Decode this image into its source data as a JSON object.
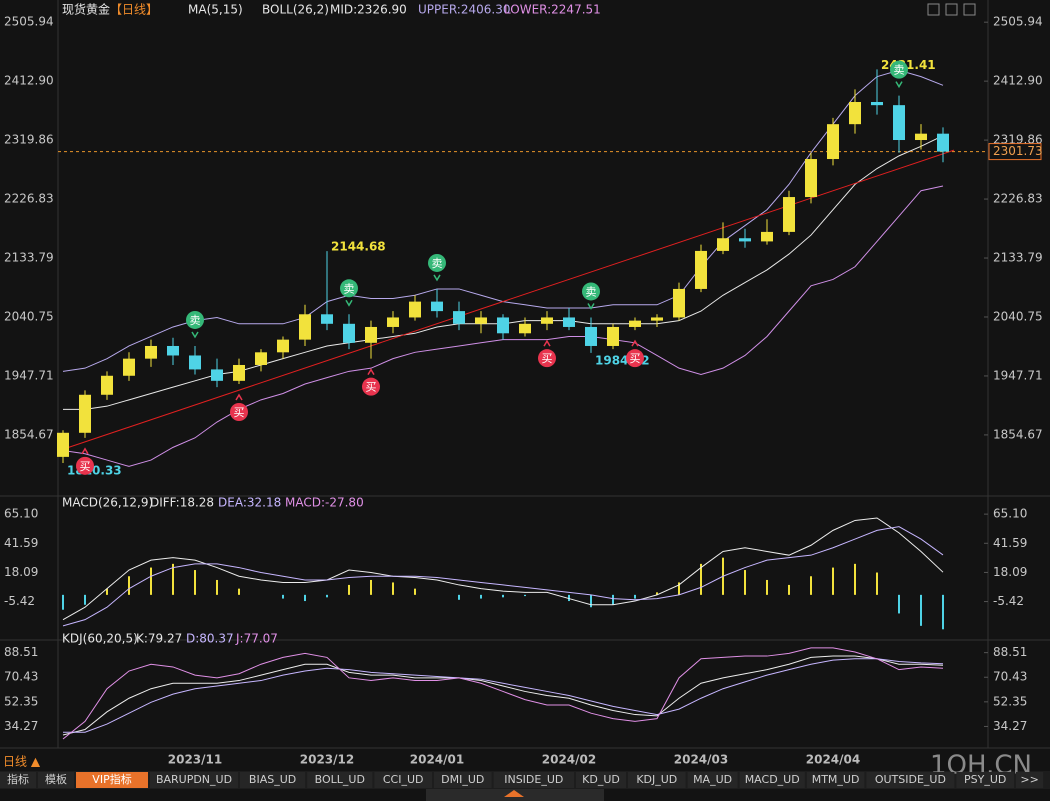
{
  "chart_data": [
    {
      "type": "candlestick",
      "labels": [
        "现货黄金",
        "【日线】",
        "MA(5,15)",
        "BOLL(26,2)",
        "MID:2326.90",
        "UPPER:2406.30",
        "LOWER:2247.51"
      ],
      "categories": [
        null,
        null,
        null,
        null,
        null,
        null,
        "2023/11",
        null,
        null,
        null,
        null,
        null,
        "2023/12",
        null,
        null,
        null,
        null,
        "2024/01",
        null,
        null,
        null,
        null,
        null,
        "2024/02",
        null,
        null,
        null,
        null,
        null,
        "2024/03",
        null,
        null,
        null,
        null,
        null,
        "2024/04",
        null,
        null,
        null,
        null,
        null
      ],
      "open": [
        1820,
        1858,
        1918,
        1948,
        1975,
        1995,
        1980,
        1958,
        1940,
        1965,
        1985,
        2005,
        2045,
        2030,
        2000,
        2025,
        2040,
        2065,
        2050,
        2030,
        2040,
        2015,
        2030,
        2040,
        2025,
        1995,
        2025,
        2035,
        2040,
        2085,
        2145,
        2165,
        2160,
        2175,
        2230,
        2290,
        2345,
        2380,
        2375,
        2320,
        2330
      ],
      "high": [
        1862,
        1925,
        1955,
        1985,
        2005,
        2008,
        1995,
        1975,
        1975,
        1990,
        2010,
        2060,
        2144.68,
        2045,
        2035,
        2050,
        2075,
        2085,
        2065,
        2050,
        2045,
        2040,
        2050,
        2055,
        2040,
        2030,
        2040,
        2045,
        2095,
        2155,
        2190,
        2180,
        2195,
        2240,
        2300,
        2355,
        2400,
        2431.41,
        2390,
        2345,
        2340
      ],
      "low": [
        1810.33,
        1850,
        1910,
        1940,
        1962,
        1965,
        1950,
        1930,
        1935,
        1955,
        1975,
        1995,
        2020,
        1990,
        1975,
        2015,
        2035,
        2040,
        2020,
        2015,
        2005,
        2010,
        2020,
        2020,
        1984.12,
        1990,
        2020,
        2025,
        2035,
        2080,
        2140,
        2150,
        2155,
        2170,
        2220,
        2280,
        2330,
        2360,
        2300,
        2305,
        2285
      ],
      "close": [
        1858,
        1918,
        1948,
        1975,
        1995,
        1980,
        1958,
        1940,
        1965,
        1985,
        2005,
        2045,
        2030,
        2000,
        2025,
        2040,
        2065,
        2050,
        2030,
        2040,
        2015,
        2030,
        2040,
        2025,
        1995,
        2025,
        2035,
        2040,
        2085,
        2145,
        2165,
        2160,
        2175,
        2230,
        2290,
        2345,
        2380,
        2375,
        2320,
        2330,
        2301.73
      ],
      "up_color": "#f2e23c",
      "down_color": "#4fd3e6",
      "overlays": [
        {
          "color": "#b7a9ec",
          "values": [
            1955,
            1960,
            1975,
            1995,
            2010,
            2025,
            2035,
            2040,
            2030,
            2030,
            2030,
            2040,
            2065,
            2075,
            2070,
            2070,
            2075,
            2085,
            2085,
            2075,
            2065,
            2060,
            2055,
            2055,
            2055,
            2060,
            2060,
            2060,
            2075,
            2120,
            2160,
            2185,
            2210,
            2250,
            2300,
            2345,
            2390,
            2420,
            2430,
            2420,
            2406.3
          ]
        },
        {
          "color": "#e8e8e8",
          "values": [
            1895,
            1895,
            1900,
            1910,
            1920,
            1930,
            1940,
            1950,
            1955,
            1965,
            1975,
            1985,
            1995,
            2000,
            2005,
            2010,
            2015,
            2025,
            2030,
            2030,
            2030,
            2035,
            2035,
            2035,
            2030,
            2030,
            2030,
            2030,
            2035,
            2050,
            2075,
            2095,
            2115,
            2140,
            2170,
            2210,
            2250,
            2275,
            2295,
            2310,
            2326.9
          ]
        },
        {
          "color": "#cf8fe6",
          "values": [
            1830,
            1825,
            1815,
            1805,
            1815,
            1835,
            1850,
            1875,
            1895,
            1910,
            1920,
            1935,
            1945,
            1955,
            1960,
            1975,
            1985,
            1990,
            1995,
            2000,
            2005,
            2005,
            2005,
            2010,
            2010,
            2005,
            2000,
            1980,
            1960,
            1950,
            1960,
            1980,
            2010,
            2050,
            2090,
            2100,
            2120,
            2160,
            2200,
            2240,
            2247.51
          ]
        }
      ],
      "trendline": {
        "color": "#e02020",
        "from": [
          0,
          1832
        ],
        "to": [
          40.5,
          2304
        ]
      },
      "last_price": 2301.73,
      "annotations": [
        {
          "index": 12,
          "value": 2144.68,
          "color": "#f2e23c"
        },
        {
          "index": 37,
          "value": 2431.41,
          "color": "#f2e23c"
        },
        {
          "index": 0,
          "value": 1810.33,
          "color": "#4fd3e6"
        },
        {
          "index": 24,
          "value": 1984.12,
          "color": "#4fd3e6"
        }
      ],
      "signals": [
        {
          "index": 1,
          "label": "买",
          "kind": "buy"
        },
        {
          "index": 8,
          "label": "买",
          "kind": "buy"
        },
        {
          "index": 14,
          "label": "买",
          "kind": "buy"
        },
        {
          "index": 22,
          "label": "买",
          "kind": "buy"
        },
        {
          "index": 26,
          "label": "买",
          "kind": "buy"
        },
        {
          "index": 6,
          "label": "卖",
          "kind": "sell"
        },
        {
          "index": 13,
          "label": "卖",
          "kind": "sell"
        },
        {
          "index": 17,
          "label": "卖",
          "kind": "sell"
        },
        {
          "index": 24,
          "label": "卖",
          "kind": "sell"
        },
        {
          "index": 38,
          "label": "卖",
          "kind": "sell"
        }
      ],
      "ylim": [
        1763,
        2522
      ],
      "yticks": [
        2505.94,
        {
          "value": 2412.9,
          "label": "2412.90"
        },
        2319.86,
        2226.83,
        2133.79,
        2040.75,
        1947.71,
        1854.67
      ]
    },
    {
      "type": "macd",
      "labels": [
        "MACD(26,12,9)",
        "DIFF:18.28",
        "DEA:32.18",
        "MACD:-27.80"
      ],
      "histogram": [
        -12,
        -8,
        5,
        15,
        22,
        25,
        20,
        12,
        5,
        0,
        -3,
        -5,
        -2,
        8,
        12,
        10,
        5,
        0,
        -4,
        -3,
        -2,
        -1,
        0,
        -5,
        -10,
        -8,
        -3,
        2,
        10,
        25,
        30,
        20,
        12,
        8,
        15,
        22,
        25,
        18,
        -15,
        -25,
        -27.8
      ],
      "up_color": "#f2e23c",
      "down_color": "#4fd3e6",
      "lines": [
        {
          "color": "#ececec",
          "values": [
            -20,
            -10,
            5,
            20,
            28,
            30,
            28,
            22,
            15,
            12,
            10,
            10,
            12,
            20,
            18,
            15,
            14,
            12,
            8,
            5,
            3,
            2,
            2,
            -3,
            -8,
            -8,
            -5,
            0,
            8,
            22,
            35,
            38,
            35,
            32,
            40,
            52,
            60,
            62,
            50,
            35,
            18.28
          ]
        },
        {
          "color": "#c6b6ff",
          "values": [
            -25,
            -20,
            -10,
            5,
            15,
            22,
            25,
            25,
            22,
            18,
            15,
            12,
            12,
            14,
            15,
            15,
            15,
            14,
            12,
            10,
            8,
            6,
            4,
            2,
            0,
            -3,
            -4,
            -3,
            0,
            6,
            15,
            22,
            28,
            30,
            32,
            38,
            45,
            52,
            55,
            45,
            32.18
          ]
        }
      ],
      "ylim": [
        -34,
        76.5
      ],
      "yticks": [
        {
          "value": 65.1,
          "label": "65.10"
        },
        41.59,
        18.09,
        -5.42
      ]
    },
    {
      "type": "kdj",
      "labels": [
        "KDJ(60,20,5)",
        "K:79.27",
        "D:80.37",
        "J:77.07"
      ],
      "lines": [
        {
          "color": "#ececec",
          "values": [
            28,
            32,
            45,
            55,
            62,
            66,
            66,
            66,
            68,
            72,
            76,
            80,
            80,
            74,
            72,
            72,
            70,
            70,
            70,
            68,
            64,
            60,
            57,
            55,
            50,
            46,
            43,
            42,
            55,
            66,
            70,
            73,
            76,
            80,
            85,
            86,
            86,
            84,
            80,
            80,
            79.27
          ]
        },
        {
          "color": "#c6b6ff",
          "values": [
            30,
            30,
            36,
            44,
            52,
            58,
            62,
            64,
            66,
            68,
            72,
            75,
            77,
            76,
            74,
            73,
            72,
            71,
            70,
            69,
            66,
            63,
            60,
            57,
            53,
            49,
            46,
            43,
            47,
            55,
            62,
            67,
            72,
            76,
            80,
            83,
            84,
            84,
            82,
            81,
            80.37
          ]
        },
        {
          "color": "#e090e6",
          "values": [
            25,
            38,
            62,
            75,
            80,
            78,
            72,
            70,
            73,
            80,
            85,
            88,
            85,
            70,
            68,
            70,
            68,
            68,
            70,
            66,
            60,
            54,
            50,
            50,
            44,
            40,
            38,
            40,
            70,
            84,
            85,
            86,
            86,
            88,
            92,
            92,
            89,
            84,
            76,
            78,
            77.07
          ]
        }
      ],
      "ylim": [
        24.3,
        95.6
      ],
      "yticks": [
        88.51,
        70.43,
        52.35,
        34.27
      ]
    }
  ],
  "toolbar": {
    "timeframe": "日线 ▲",
    "tabs": [
      "指标",
      "模板",
      "VIP指标",
      "BARUPDN_UD",
      "BIAS_UD",
      "BOLL_UD",
      "CCI_UD",
      "DMI_UD",
      "INSIDE_UD",
      "KD_UD",
      "KDJ_UD",
      "MA_UD",
      "MACD_UD",
      "MTM_UD",
      "OUTSIDE_UD",
      "PSY_UD",
      ">>"
    ]
  },
  "watermark": "1QH.CN"
}
